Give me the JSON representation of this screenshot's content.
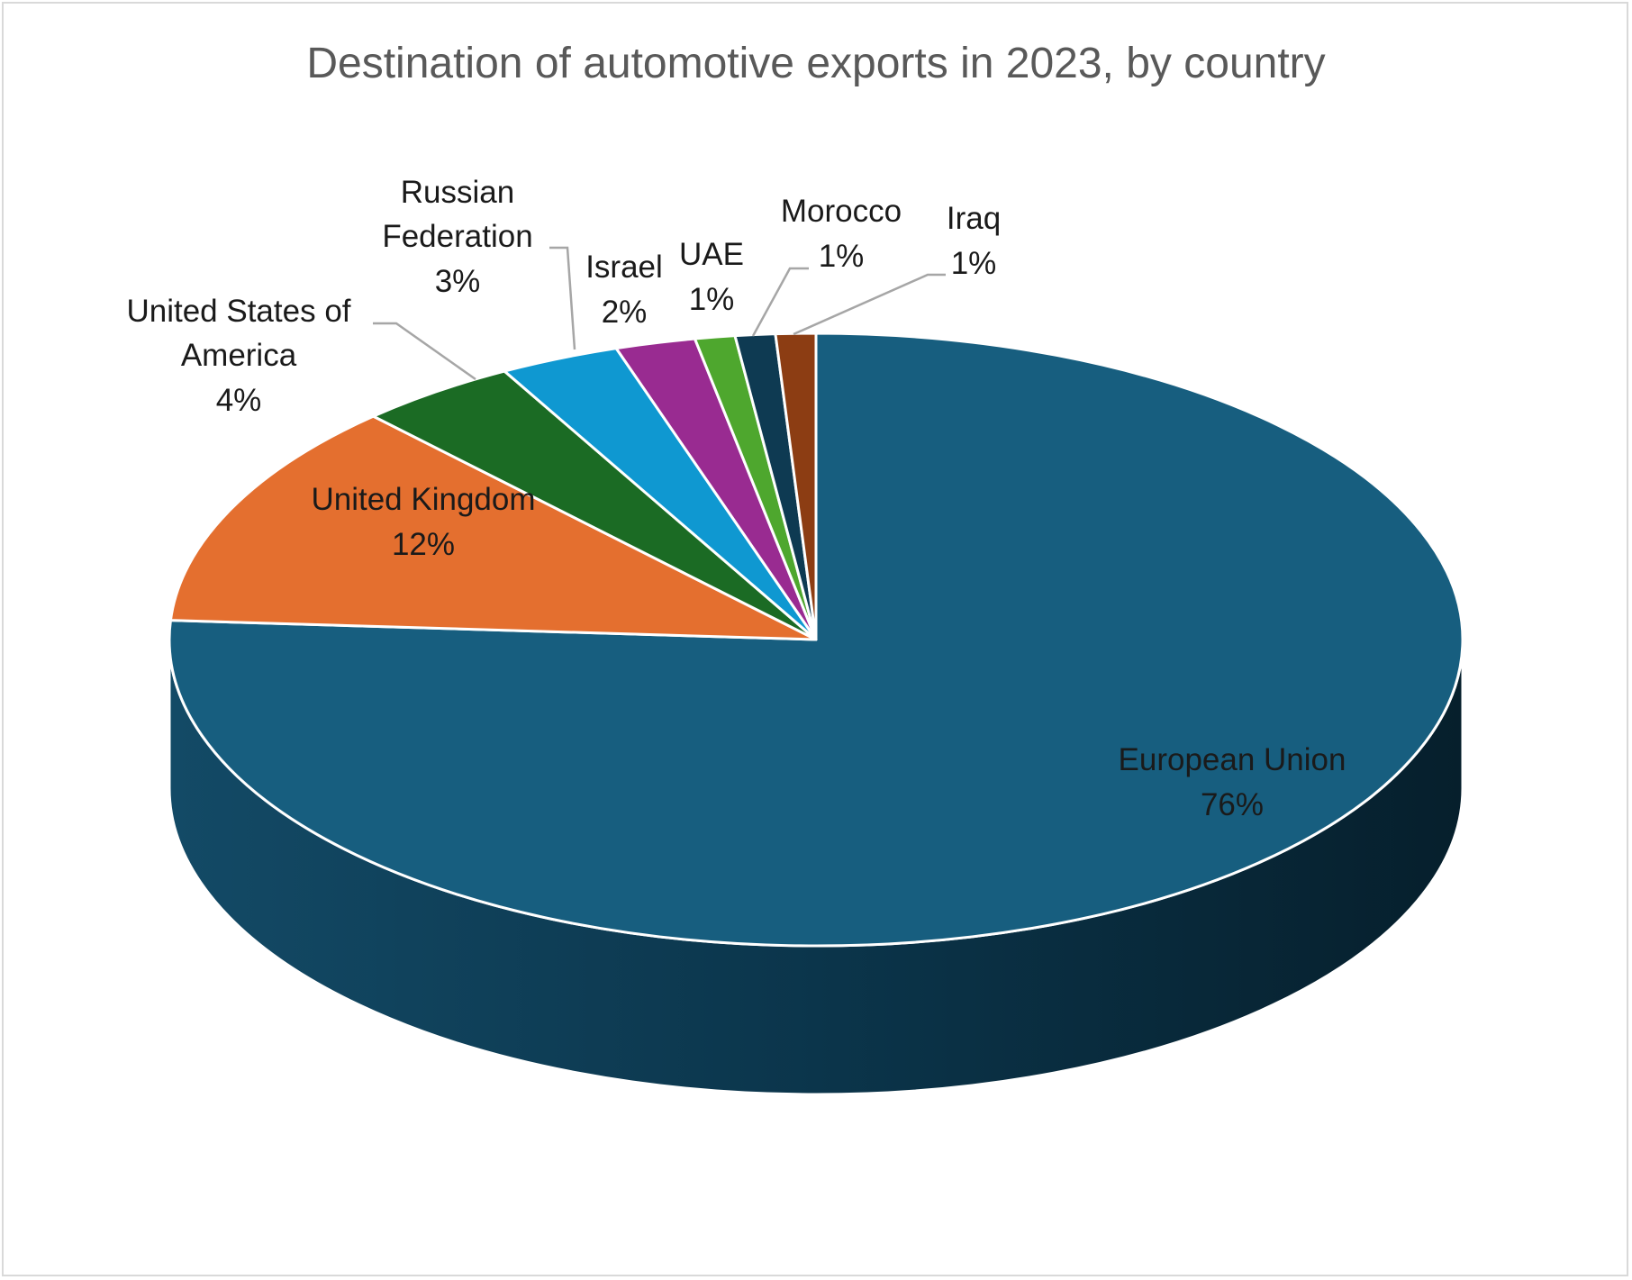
{
  "chart_data": {
    "type": "pie",
    "title": "Destination of automotive exports in 2023, by country",
    "categories": [
      "European Union",
      "United Kingdom",
      "United States of America",
      "Russian Federation",
      "Israel",
      "UAE",
      "Morocco",
      "Iraq"
    ],
    "values": [
      76,
      12,
      4,
      3,
      2,
      1,
      1,
      1
    ],
    "data_labels": [
      "76%",
      "12%",
      "4%",
      "3%",
      "2%",
      "1%",
      "1%",
      "1%"
    ],
    "colors": [
      "#175e7f",
      "#e46f2f",
      "#1b6b24",
      "#0f98d1",
      "#992b91",
      "#4ea72e",
      "#0e3a52",
      "#8c3d13"
    ],
    "style": "3d-pie",
    "legend": "none"
  }
}
